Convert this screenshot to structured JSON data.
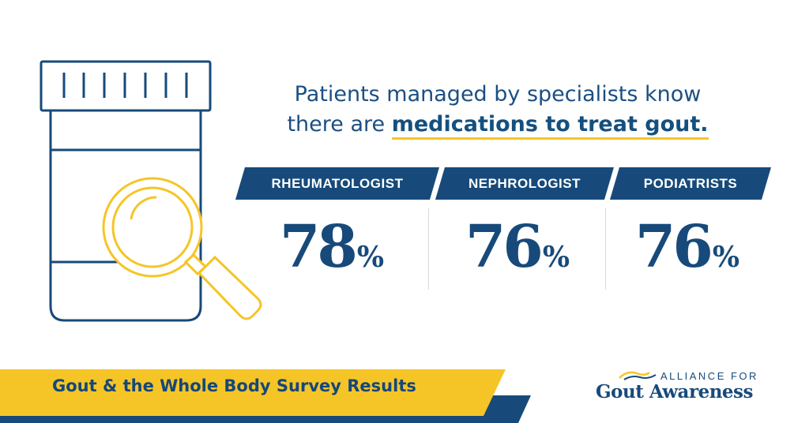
{
  "headline": {
    "line1": "Patients managed by specialists know",
    "line2_prefix": "there are ",
    "line2_emphasis": "medications to treat gout."
  },
  "stats": [
    {
      "label": "RHEUMATOLOGIST",
      "value": "78",
      "unit": "%"
    },
    {
      "label": "NEPHROLOGIST",
      "value": "76",
      "unit": "%"
    },
    {
      "label": "PODIATRISTS",
      "value": "76",
      "unit": "%"
    }
  ],
  "footer": {
    "title": "Gout & the Whole Body Survey Results"
  },
  "logo": {
    "line1": "ALLIANCE FOR",
    "line2": "Gout Awareness"
  },
  "colors": {
    "navy": "#174a7a",
    "yellow": "#f5c527",
    "white": "#ffffff"
  },
  "icons": [
    "pill-bottle-icon",
    "magnifying-glass-icon"
  ]
}
